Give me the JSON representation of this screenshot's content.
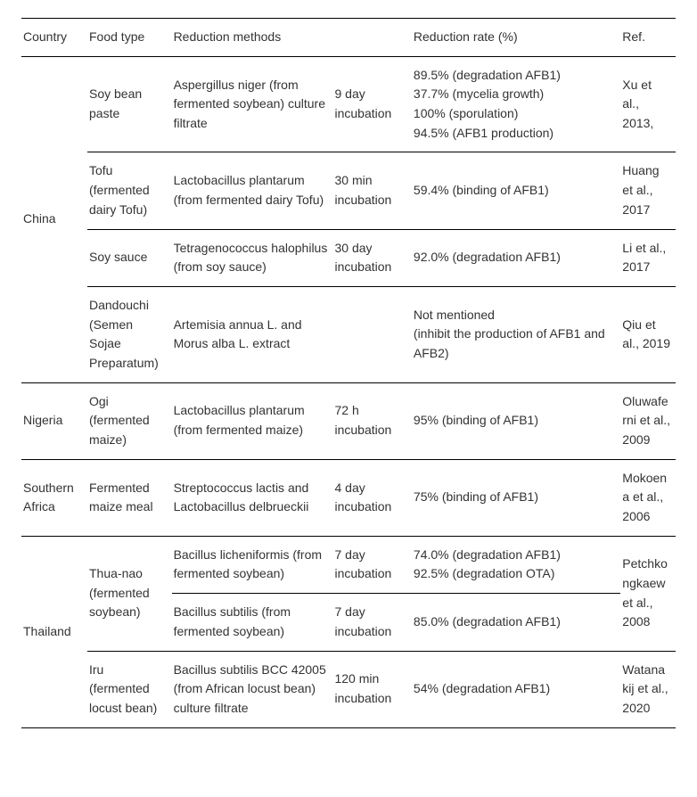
{
  "headers": {
    "country": "Country",
    "food": "Food type",
    "methods": "Reduction methods",
    "rate": "Reduction rate (%)",
    "ref": "Ref."
  },
  "rows": {
    "china": {
      "country": "China",
      "r1": {
        "food": "Soy bean paste",
        "method_a": "Aspergillus niger (from fermented soybean) culture filtrate",
        "method_b": "9 day incubation",
        "rate": "89.5% (degradation AFB1)\n37.7% (mycelia growth)\n100% (sporulation)\n94.5% (AFB1 production)",
        "ref": "Xu et al., 2013,"
      },
      "r2": {
        "food": "Tofu (fermented dairy Tofu)",
        "method_a": "Lactobacillus plantarum (from fermented dairy Tofu)",
        "method_b": "30 min incubation",
        "rate": "59.4% (binding of AFB1)",
        "ref": "Huang et al., 2017"
      },
      "r3": {
        "food": "Soy sauce",
        "method_a": "Tetragenococcus halophilus (from soy sauce)",
        "method_b": "30 day incubation",
        "rate": "92.0% (degradation AFB1)",
        "ref": "Li et al., 2017"
      },
      "r4": {
        "food": "Dandouchi (Semen Sojae Preparatum)",
        "method_a": "Artemisia annua L. and Morus alba L. extract",
        "method_b": "",
        "rate": "Not mentioned\n(inhibit the production of AFB1 and AFB2)",
        "ref": "Qiu et al., 2019"
      }
    },
    "nigeria": {
      "country": "Nigeria",
      "r1": {
        "food": "Ogi (fermented maize)",
        "method_a": "Lactobacillus plantarum (from fermented maize)",
        "method_b": "72 h incubation",
        "rate": "95% (binding of AFB1)",
        "ref": "Oluwaferni et al., 2009"
      }
    },
    "safrica": {
      "country": "Southern Africa",
      "r1": {
        "food": "Fermented maize meal",
        "method_a": "Streptococcus lactis and Lactobacillus delbrueckii",
        "method_b": "4 day incubation",
        "rate": "75% (binding of AFB1)",
        "ref": "Mokoena et al., 2006"
      }
    },
    "thailand": {
      "country": "Thailand",
      "r1": {
        "food": "Thua-nao (fermented soybean)",
        "method_a": "Bacillus licheniformis (from fermented soybean)",
        "method_b": "7 day incubation",
        "rate": "74.0% (degradation AFB1)\n92.5% (degradation OTA)",
        "ref": "Petchkongkaew et al., 2008"
      },
      "r2": {
        "method_a": "Bacillus subtilis (from fermented soybean)",
        "method_b": "7 day incubation",
        "rate": "85.0% (degradation AFB1)"
      },
      "r3": {
        "food": "Iru (fermented locust bean)",
        "method_a": "Bacillus subtilis BCC 42005 (from African locust bean) culture filtrate",
        "method_b": "120 min incubation",
        "rate": "54% (degradation AFB1)",
        "ref": "Watanakij et al., 2020"
      }
    }
  }
}
